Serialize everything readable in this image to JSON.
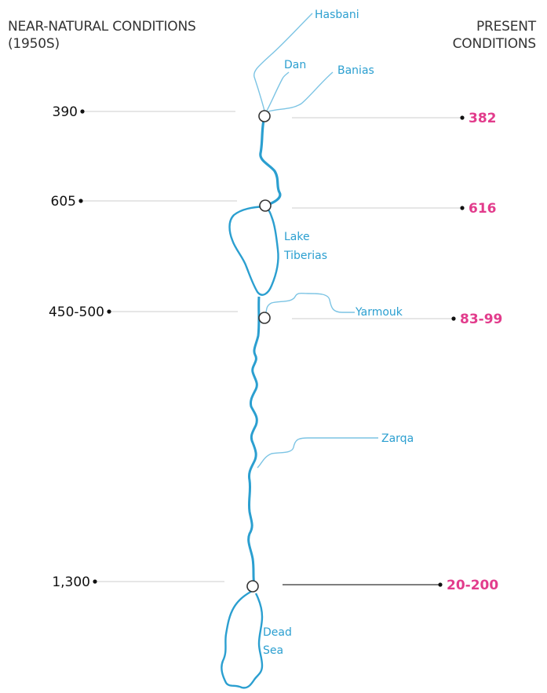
{
  "header_left": {
    "line1": "NEAR-NATURAL CONDITIONS",
    "line2": "(1950S)"
  },
  "header_right": {
    "line1": "PRESENT",
    "line2": "CONDITIONS"
  },
  "rows": [
    {
      "near_natural": "390",
      "present": "382"
    },
    {
      "near_natural": "605",
      "present": "616"
    },
    {
      "near_natural": "450-500",
      "present": "83-99"
    },
    {
      "near_natural": "1,300",
      "present": "20-200"
    }
  ],
  "labels": {
    "hasbani": "Hasbani",
    "dan": "Dan",
    "banias": "Banias",
    "lake_line1": "Lake",
    "lake_line2": "Tiberias",
    "yarmouk": "Yarmouk",
    "zarqa": "Zarqa",
    "dead_line1": "Dead",
    "dead_line2": "Sea"
  },
  "colors": {
    "river": "#2b9fd0",
    "tributary": "#7cc4e4",
    "present_value": "#e23c8c",
    "near_natural_value": "#111111",
    "leader_line": "#d6d6d6"
  }
}
